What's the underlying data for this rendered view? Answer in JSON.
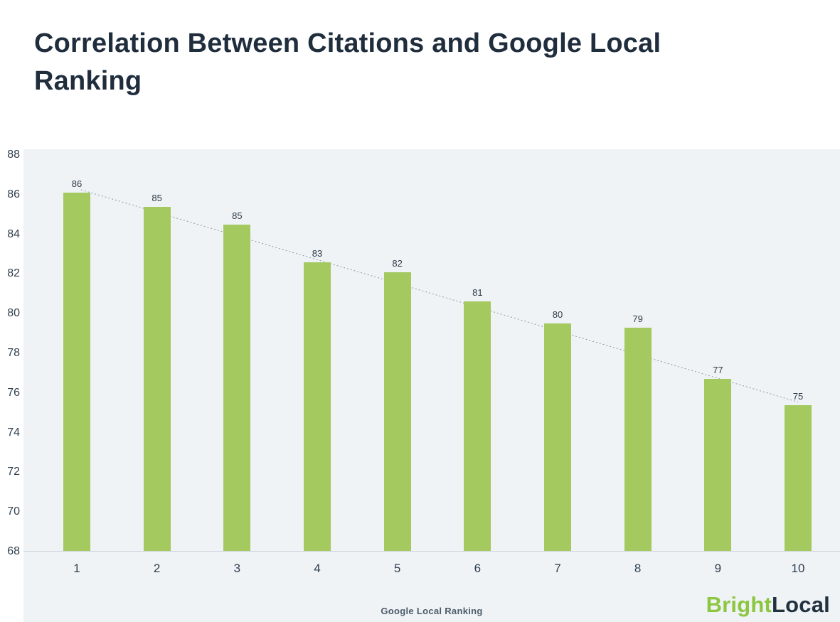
{
  "title": "Correlation Between Citations and Google Local Ranking",
  "chart_data": {
    "type": "bar",
    "categories": [
      "1",
      "2",
      "3",
      "4",
      "5",
      "6",
      "7",
      "8",
      "9",
      "10"
    ],
    "values": [
      86.1,
      85.4,
      84.5,
      82.6,
      82.1,
      80.6,
      79.5,
      79.3,
      76.7,
      75.4
    ],
    "data_labels": [
      "86",
      "85",
      "85",
      "83",
      "82",
      "81",
      "80",
      "79",
      "77",
      "75"
    ],
    "title": "Correlation Between Citations and Google Local Ranking",
    "xlabel": "Google Local Ranking",
    "ylabel": "",
    "ylim": [
      68,
      88
    ],
    "ytick_step": 2,
    "yticks": [
      "68",
      "70",
      "72",
      "74",
      "76",
      "78",
      "80",
      "82",
      "84",
      "86",
      "88"
    ],
    "grid": false,
    "trendline": true,
    "bar_color": "#a3c95f",
    "plot_background": "#eff3f6",
    "trendline_color": "#8c9aa5"
  },
  "branding": {
    "first": "Bright",
    "second": "Local",
    "green": "#8dc63f",
    "dark": "#22313f"
  }
}
